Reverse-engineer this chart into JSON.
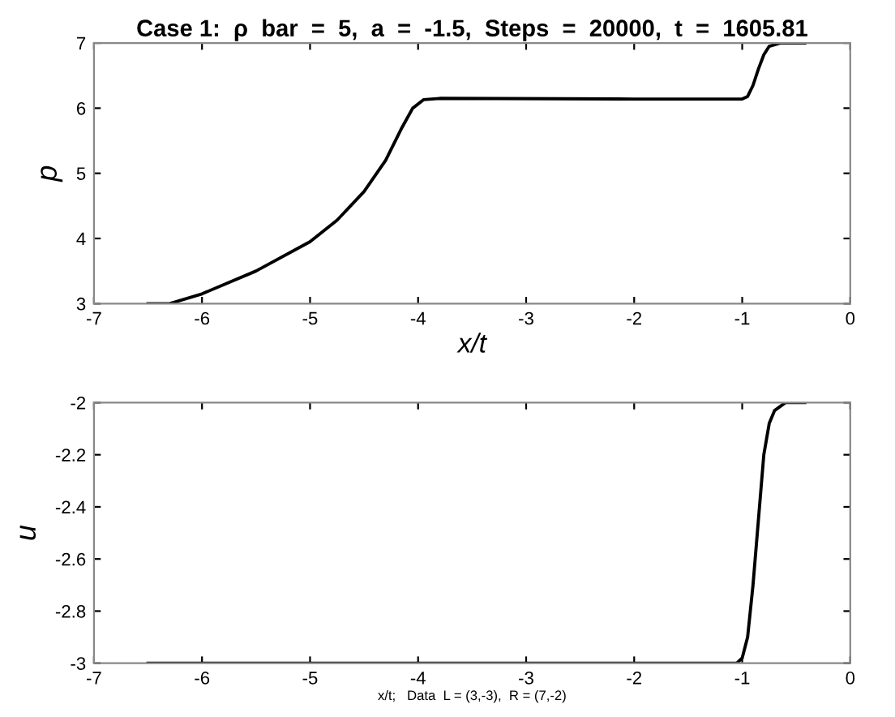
{
  "chart_data": [
    {
      "type": "line",
      "title": "Case 1:  ρ  bar  =  5,  a  =  -1.5,  Steps  =  20000,  t  =  1605.81",
      "xlabel": "x/t",
      "ylabel": "p",
      "xlim": [
        -7,
        0
      ],
      "xticks": [
        -7,
        -6,
        -5,
        -4,
        -3,
        -2,
        -1,
        0
      ],
      "ylim": [
        3,
        7
      ],
      "yticks": [
        3,
        4,
        5,
        6,
        7
      ],
      "grid": false,
      "legend": false,
      "series": [
        {
          "color": "#000000",
          "x": [
            -6.5,
            -6.3,
            -6,
            -5.5,
            -5,
            -4.75,
            -4.5,
            -4.3,
            -4.15,
            -4.05,
            -3.95,
            -3.8,
            -2,
            -1,
            -0.95,
            -0.9,
            -0.85,
            -0.8,
            -0.75,
            -0.65,
            -0.42
          ],
          "values": [
            3,
            3.0,
            3.15,
            3.5,
            3.95,
            4.28,
            4.72,
            5.2,
            5.7,
            6.0,
            6.13,
            6.15,
            6.14,
            6.14,
            6.18,
            6.35,
            6.6,
            6.82,
            6.95,
            7.0,
            7.0
          ]
        }
      ]
    },
    {
      "type": "line",
      "xlabel": "x/t;   Data  L = (3,-3),  R = (7,-2)",
      "ylabel": "u",
      "xlim": [
        -7,
        0
      ],
      "xticks": [
        -7,
        -6,
        -5,
        -4,
        -3,
        -2,
        -1,
        0
      ],
      "ylim": [
        -3,
        -2
      ],
      "yticks": [
        -3,
        -2.8,
        -2.6,
        -2.4,
        -2.2,
        -2
      ],
      "grid": false,
      "legend": false,
      "series": [
        {
          "color": "#000000",
          "x": [
            -6.5,
            -1.05,
            -1.0,
            -0.95,
            -0.9,
            -0.85,
            -0.8,
            -0.75,
            -0.7,
            -0.6,
            -0.42
          ],
          "values": [
            -3,
            -3,
            -2.98,
            -2.9,
            -2.7,
            -2.45,
            -2.2,
            -2.08,
            -2.03,
            -2.0,
            -2.0
          ]
        }
      ]
    }
  ]
}
